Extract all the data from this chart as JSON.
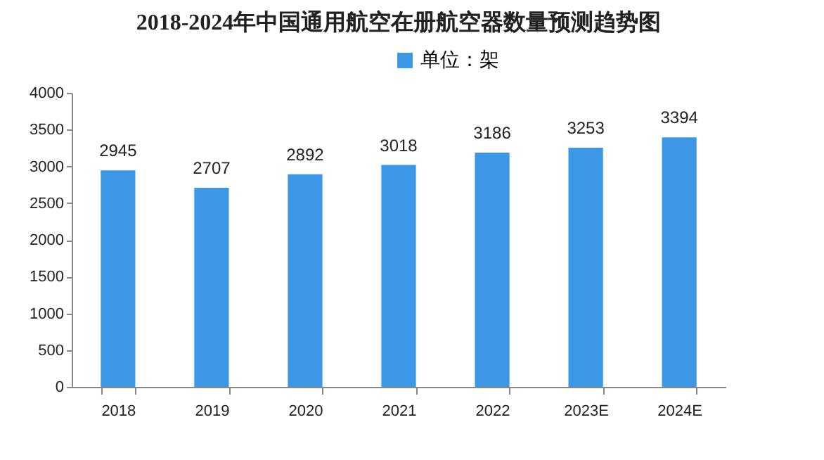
{
  "chart_data": {
    "type": "bar",
    "title": "2018-2024年中国通用航空在册航空器数量预测趋势图",
    "categories": [
      "2018",
      "2019",
      "2020",
      "2021",
      "2022",
      "2023E",
      "2024E"
    ],
    "series": [
      {
        "name": "单位：架",
        "color": "#3c98e6",
        "values": [
          2945,
          2707,
          2892,
          3018,
          3186,
          3253,
          3394
        ]
      }
    ],
    "ylim": [
      0,
      4000
    ],
    "yticks": [
      0,
      500,
      1000,
      1500,
      2000,
      2500,
      3000,
      3500,
      4000
    ],
    "grid": false,
    "legend": "top",
    "data_labels": true
  }
}
